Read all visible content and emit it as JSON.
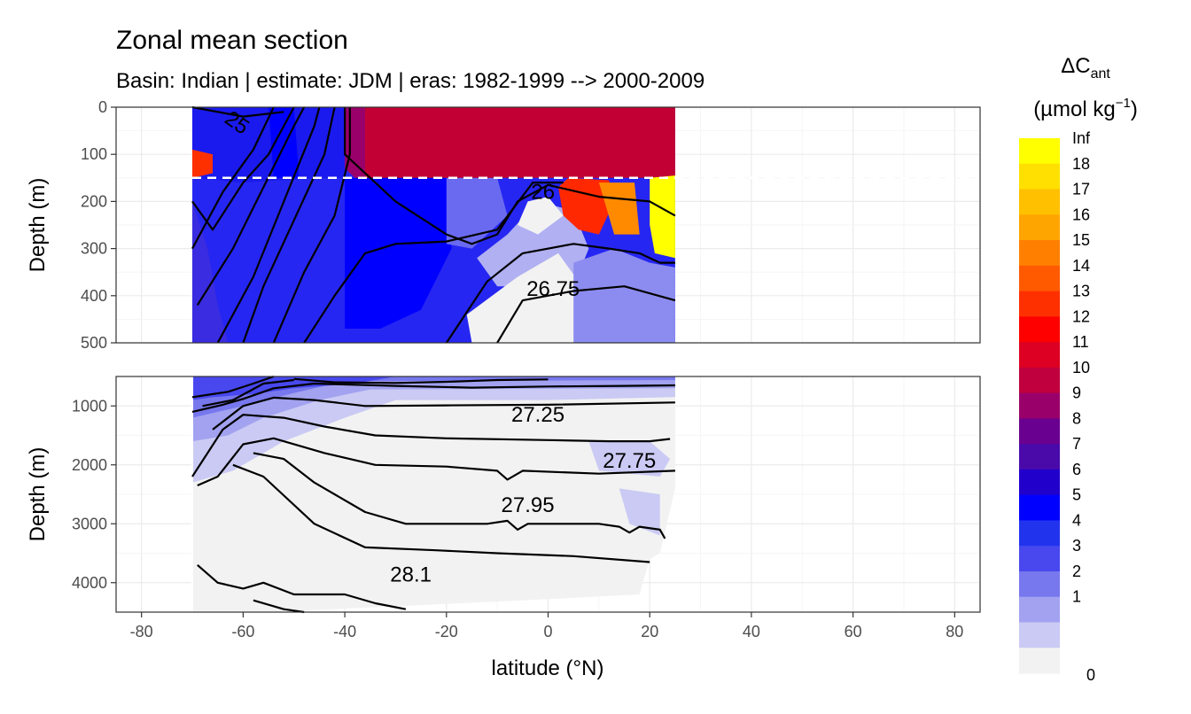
{
  "chart_data": {
    "type": "heatmap",
    "title": "Zonal mean section",
    "subtitle": "Basin: Indian | estimate: JDM  | eras: 1982-1999 --> 2000-2009",
    "xlabel": "latitude (°N)",
    "ylabel": "Depth (m)",
    "xlim": [
      -85,
      85
    ],
    "x_ticks": [
      "-80",
      "-60",
      "-40",
      "-20",
      "0",
      "20",
      "40",
      "60",
      "80"
    ],
    "panels": [
      {
        "name": "upper",
        "ylim": [
          0,
          500
        ],
        "y_ticks": [
          "0",
          "100",
          "200",
          "300",
          "400",
          "500"
        ],
        "reference_depth_m": 150,
        "contour_labels": [
          "25",
          "26",
          "26.75"
        ]
      },
      {
        "name": "lower",
        "ylim": [
          500,
          4500
        ],
        "y_ticks": [
          "1000",
          "2000",
          "3000",
          "4000"
        ],
        "contour_labels": [
          "27.25",
          "27.75",
          "27.95",
          "28.1"
        ]
      }
    ],
    "data_lat_range": [
      -70,
      25
    ],
    "legend": {
      "title_main": "ΔC",
      "title_sub": "ant",
      "title_units": "(µmol kg",
      "title_exp": "−1",
      "title_close": ")",
      "labels": [
        "Inf",
        "18",
        "17",
        "16",
        "15",
        "14",
        "13",
        "12",
        "11",
        "10",
        "9",
        "8",
        "7",
        "6",
        "5",
        "4",
        "3",
        "2",
        "1",
        "0"
      ],
      "colors": [
        "#FFFF00",
        "#FFE000",
        "#FFC000",
        "#FFA500",
        "#FF8000",
        "#FF5A00",
        "#FF3000",
        "#FF0000",
        "#DD0022",
        "#C0003E",
        "#9A006A",
        "#6A0090",
        "#4A0AAA",
        "#2200CC",
        "#0000FF",
        "#2233EE",
        "#4848EE",
        "#7777EE",
        "#A2A2F0",
        "#CACAF4",
        "#F2F2F2"
      ]
    }
  }
}
